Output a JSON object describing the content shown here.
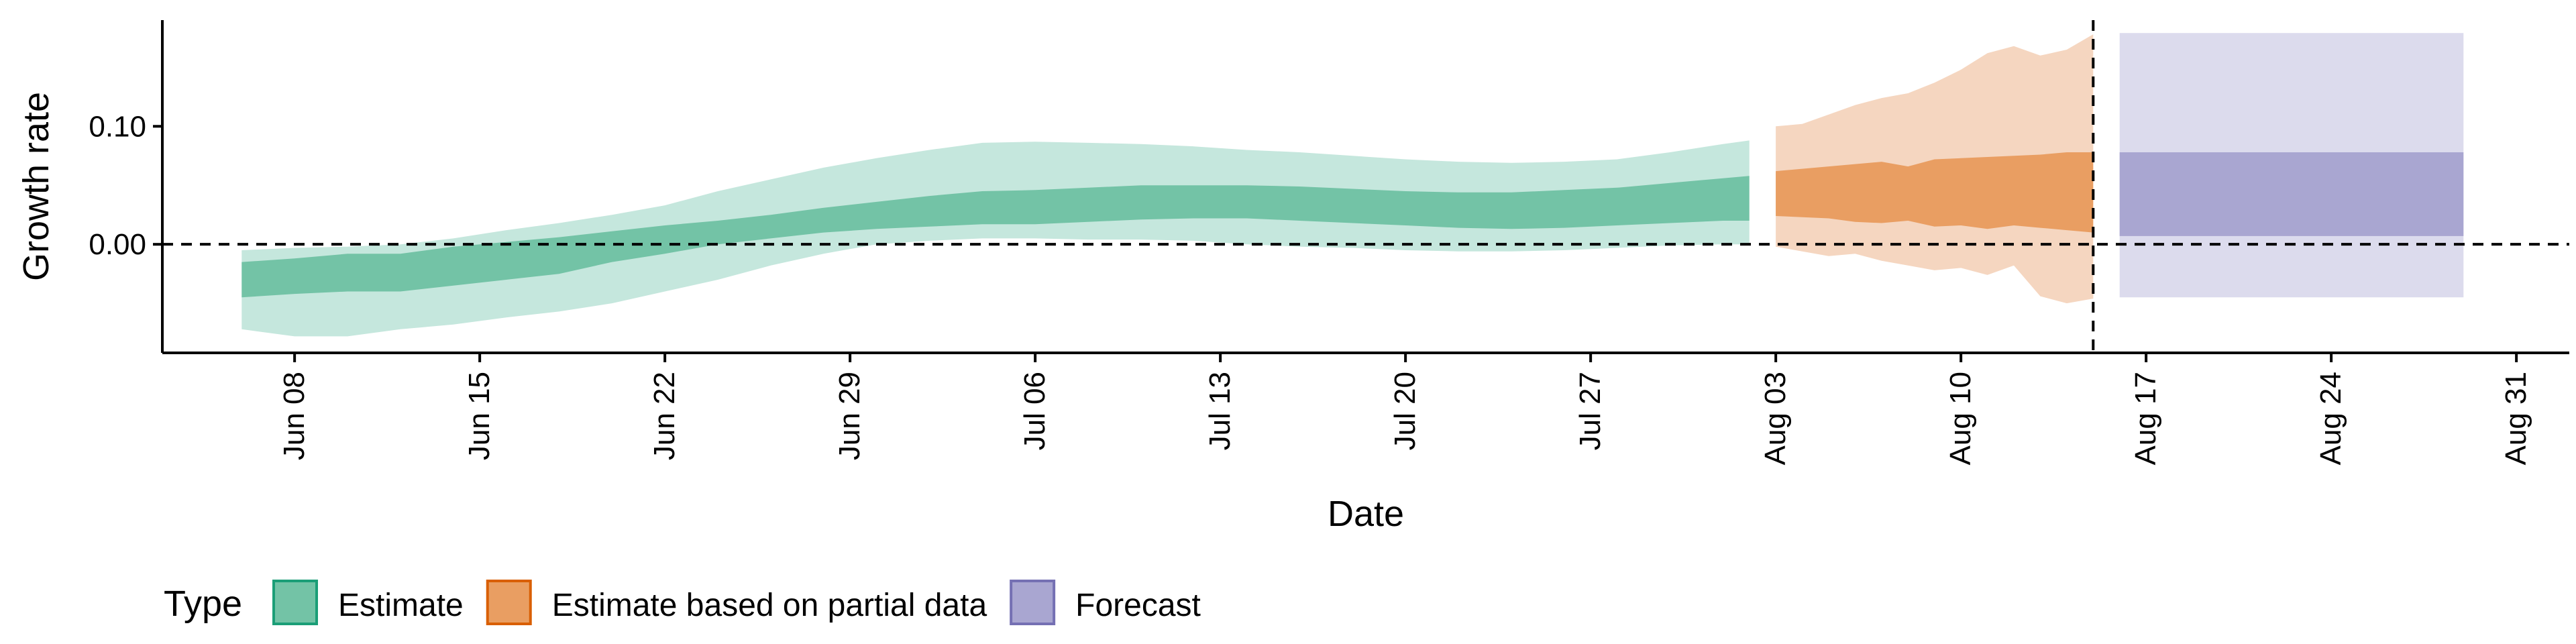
{
  "chart_data": {
    "type": "area",
    "title": "",
    "xlabel": "Date",
    "ylabel": "Growth rate",
    "x_range": [
      "2020-06-03",
      "2020-09-02"
    ],
    "ylim": [
      -0.092,
      0.19
    ],
    "y_ticks": [
      0.0,
      0.1
    ],
    "y_tick_labels": [
      "0.00",
      "0.10"
    ],
    "x_ticks": [
      "2020-06-08",
      "2020-06-15",
      "2020-06-22",
      "2020-06-29",
      "2020-07-06",
      "2020-07-13",
      "2020-07-20",
      "2020-07-27",
      "2020-08-03",
      "2020-08-10",
      "2020-08-17",
      "2020-08-24",
      "2020-08-31"
    ],
    "x_tick_labels": [
      "Jun 08",
      "Jun 15",
      "Jun 22",
      "Jun 29",
      "Jul 06",
      "Jul 13",
      "Jul 20",
      "Jul 27",
      "Aug 03",
      "Aug 10",
      "Aug 17",
      "Aug 24",
      "Aug 31"
    ],
    "reference_lines": {
      "horizontal_y": 0.0,
      "vertical_x": "2020-08-15"
    },
    "grid": false,
    "legend": {
      "title": "Type",
      "position": "bottom-left",
      "entries": [
        {
          "label": "Estimate",
          "fill": "#73C3A6",
          "stroke": "#1B9E77"
        },
        {
          "label": "Estimate based on partial data",
          "fill": "#E99E62",
          "stroke": "#D95F02"
        },
        {
          "label": "Forecast",
          "fill": "#A9A6D1",
          "stroke": "#7570B3"
        }
      ]
    },
    "series": [
      {
        "name": "Estimate",
        "inner_fill": "#73C3A6",
        "outer_fill": "#C5E7DD",
        "x": [
          "2020-06-06",
          "2020-06-08",
          "2020-06-10",
          "2020-06-12",
          "2020-06-14",
          "2020-06-16",
          "2020-06-18",
          "2020-06-20",
          "2020-06-22",
          "2020-06-24",
          "2020-06-26",
          "2020-06-28",
          "2020-06-30",
          "2020-07-02",
          "2020-07-04",
          "2020-07-06",
          "2020-07-08",
          "2020-07-10",
          "2020-07-12",
          "2020-07-14",
          "2020-07-16",
          "2020-07-18",
          "2020-07-20",
          "2020-07-22",
          "2020-07-24",
          "2020-07-26",
          "2020-07-28",
          "2020-07-30",
          "2020-08-01",
          "2020-08-02"
        ],
        "lower_90": [
          -0.072,
          -0.078,
          -0.078,
          -0.072,
          -0.068,
          -0.062,
          -0.057,
          -0.05,
          -0.04,
          -0.03,
          -0.018,
          -0.008,
          0.0,
          0.003,
          0.005,
          0.005,
          0.004,
          0.004,
          0.003,
          0.0,
          -0.002,
          -0.003,
          -0.005,
          -0.006,
          -0.006,
          -0.005,
          -0.003,
          -0.001,
          0.0,
          0.0
        ],
        "lower_50": [
          -0.045,
          -0.042,
          -0.04,
          -0.04,
          -0.035,
          -0.03,
          -0.025,
          -0.015,
          -0.008,
          0.0,
          0.005,
          0.01,
          0.013,
          0.015,
          0.017,
          0.017,
          0.019,
          0.021,
          0.022,
          0.022,
          0.02,
          0.018,
          0.016,
          0.014,
          0.013,
          0.014,
          0.016,
          0.018,
          0.02,
          0.02
        ],
        "upper_50": [
          -0.015,
          -0.012,
          -0.008,
          -0.008,
          -0.002,
          0.002,
          0.006,
          0.011,
          0.016,
          0.02,
          0.025,
          0.031,
          0.036,
          0.041,
          0.045,
          0.046,
          0.048,
          0.05,
          0.05,
          0.05,
          0.049,
          0.047,
          0.045,
          0.044,
          0.044,
          0.046,
          0.048,
          0.052,
          0.056,
          0.058
        ],
        "upper_90": [
          -0.005,
          -0.003,
          -0.002,
          0.0,
          0.005,
          0.012,
          0.018,
          0.025,
          0.033,
          0.045,
          0.055,
          0.065,
          0.073,
          0.08,
          0.086,
          0.087,
          0.086,
          0.085,
          0.083,
          0.08,
          0.078,
          0.075,
          0.072,
          0.07,
          0.069,
          0.07,
          0.072,
          0.078,
          0.085,
          0.088
        ]
      },
      {
        "name": "Estimate based on partial data",
        "inner_fill": "#E99E62",
        "outer_fill": "#F5D6C0",
        "x": [
          "2020-08-03",
          "2020-08-04",
          "2020-08-05",
          "2020-08-06",
          "2020-08-07",
          "2020-08-08",
          "2020-08-09",
          "2020-08-10",
          "2020-08-11",
          "2020-08-12",
          "2020-08-13",
          "2020-08-14",
          "2020-08-15"
        ],
        "lower_90": [
          -0.002,
          -0.006,
          -0.01,
          -0.008,
          -0.014,
          -0.018,
          -0.022,
          -0.02,
          -0.026,
          -0.018,
          -0.044,
          -0.05,
          -0.046
        ],
        "lower_50": [
          0.024,
          0.023,
          0.022,
          0.019,
          0.018,
          0.02,
          0.015,
          0.016,
          0.013,
          0.016,
          0.014,
          0.012,
          0.01
        ],
        "upper_50": [
          0.062,
          0.064,
          0.066,
          0.068,
          0.07,
          0.066,
          0.072,
          0.073,
          0.074,
          0.075,
          0.076,
          0.078,
          0.078
        ],
        "upper_90": [
          0.1,
          0.102,
          0.11,
          0.118,
          0.124,
          0.128,
          0.137,
          0.148,
          0.162,
          0.168,
          0.16,
          0.165,
          0.178
        ]
      },
      {
        "name": "Forecast",
        "inner_fill": "#A9A6D1",
        "outer_fill": "#DCDBED",
        "x": [
          "2020-08-16",
          "2020-08-29"
        ],
        "lower_90": [
          -0.045,
          -0.045
        ],
        "lower_50": [
          0.007,
          0.007
        ],
        "upper_50": [
          0.078,
          0.078
        ],
        "upper_90": [
          0.179,
          0.179
        ]
      }
    ]
  }
}
